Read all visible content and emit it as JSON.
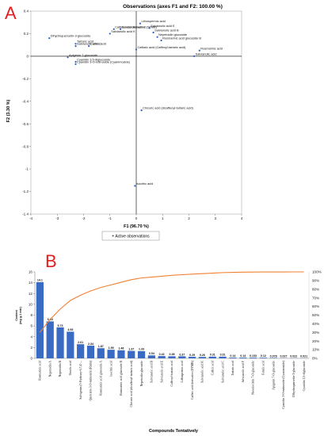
{
  "panel_a_letter": "A",
  "panel_b_letter": "B",
  "chart_data": [
    {
      "type": "scatter",
      "title": "Observations (axes F1 and F2: 100.00 %)",
      "xlabel": "F1 (96.70 %)",
      "ylabel": "F2 (3.30 %)",
      "xlim": [
        -4,
        4
      ],
      "ylim": [
        -1.4,
        0.4
      ],
      "xticks": [
        -4,
        -3,
        -2,
        -1,
        0,
        1,
        2,
        3,
        4
      ],
      "yticks": [
        0.4,
        0.2,
        0,
        -0.2,
        -0.4,
        -0.6,
        -0.8,
        -1,
        -1.2,
        -1.4
      ],
      "legend": "+ Active observations",
      "color": "#2f5fbf",
      "points": [
        {
          "label": "Dihydroquercetin-3-glucoside",
          "x": -3.3,
          "y": 0.16
        },
        {
          "label": "Salvianolic acid K",
          "x": -1.0,
          "y": 0.2
        },
        {
          "label": "Caffeic acid derivative (DTMB)",
          "x": -0.85,
          "y": 0.24
        },
        {
          "label": "Salvianolic acid 2",
          "x": -0.6,
          "y": 0.24
        },
        {
          "label": "Tartaric acid",
          "x": -2.3,
          "y": 0.11
        },
        {
          "label": "Salvianolic acid C",
          "x": -2.3,
          "y": 0.09
        },
        {
          "label": "Caffeic acid",
          "x": -1.8,
          "y": 0.09
        },
        {
          "label": "Apigenin 7-glucoside",
          "x": -2.6,
          "y": -0.01
        },
        {
          "label": "Cyanidin 3,5-diglucoside",
          "x": -2.3,
          "y": -0.05
        },
        {
          "label": "Cyanidin 3-O-rutinoside (Cyanimoside)",
          "x": -2.3,
          "y": -0.07
        },
        {
          "label": "Lithospermic acid",
          "x": 0.15,
          "y": 0.29
        },
        {
          "label": "Salvianolic acid E",
          "x": 0.5,
          "y": 0.25
        },
        {
          "label": "Salvianolic acid B",
          "x": 0.65,
          "y": 0.21
        },
        {
          "label": "Nepetoidin glucoside",
          "x": 0.8,
          "y": 0.17
        },
        {
          "label": "Rosmarinic acid glucoside B",
          "x": 0.95,
          "y": 0.14
        },
        {
          "label": "Caftaric acid (Caffeoyl-tartaric acid)",
          "x": 0.0,
          "y": 0.06
        },
        {
          "label": "Rosmarinic acid",
          "x": 2.4,
          "y": 0.05
        },
        {
          "label": "Salvianolic acid",
          "x": 2.2,
          "y": 0.0
        },
        {
          "label": "Chicoric acid (dicaffeoyl-tartaric acid)",
          "x": 0.2,
          "y": -0.48
        },
        {
          "label": "Isocitric acid",
          "x": -0.05,
          "y": -1.15
        }
      ]
    },
    {
      "type": "bar",
      "xlabel": "Compounds Tentatively",
      "ylabel": "Content (mg g-1 extr)",
      "ylim": [
        0,
        16
      ],
      "yticks": [
        0,
        2,
        4,
        6,
        8,
        10,
        12,
        14,
        16
      ],
      "y2lim": [
        0,
        100
      ],
      "y2ticks": [
        "0%",
        "10%",
        "20%",
        "30%",
        "40%",
        "50%",
        "60%",
        "70%",
        "80%",
        "90%",
        "100%"
      ],
      "bar_color": "#3a6bc4",
      "line_color": "#f08030",
      "categories": [
        "Rosmarinic acid",
        "Nepetoidin A",
        "Nepetoidin B",
        "Ursolic acid",
        "Salvigenin (5-Hydroxy-6,7,4'-...",
        "Quercetin-3-O-rutinoside (Rutin)",
        "Rosmarinic acid glucoside A",
        "Isocitric acid",
        "Rosmarinic acid glucoside B",
        "Chicoric acid (dicaffeoyl-tartaric acid)",
        "Nepetoidin glucoside",
        "Salvianolic acid B",
        "Salvianolic acid E",
        "Caffeoyl-tartaric acid",
        "Lithospermic acid",
        "Caffeic acid derivative (DTMB)",
        "Salvianolic acid K",
        "Caffeic acid",
        "Salvianolic acid C",
        "Tartaric acid",
        "Salvianolic acid F",
        "Neoeriocitrin 7-O-glucoside",
        "Ferulic acid",
        "Apigenin 7-O-glucoside",
        "Cyanidin 3-O-rutinoside (Cyanimoside)",
        "Dihydroquercetin-3-glucoside",
        "Cyanidin 3,5-diglucoside"
      ],
      "value_labels": [
        "14.1",
        "6.84",
        "5.73",
        "4.93",
        "2.61",
        "2.34",
        "1.87",
        "1.59",
        "1.48",
        "1.37",
        "1.33",
        "0.54",
        "0.42",
        "0.38",
        "0.37",
        "0.29",
        "0.26",
        "0.31",
        "0.31",
        "0.14",
        "0.14",
        "0.133",
        "0.12",
        "0.078",
        "0.027",
        "0.022",
        "0.021"
      ],
      "values": [
        14.1,
        6.84,
        5.73,
        4.93,
        2.61,
        2.34,
        1.87,
        1.59,
        1.48,
        1.37,
        1.33,
        0.54,
        0.42,
        0.38,
        0.37,
        0.29,
        0.26,
        0.31,
        0.31,
        0.14,
        0.14,
        0.133,
        0.12,
        0.078,
        0.027,
        0.022,
        0.021
      ],
      "cumulative_percent": [
        30,
        45,
        57,
        67,
        73,
        78,
        82,
        85,
        88,
        91,
        93,
        94,
        95,
        96,
        96.8,
        97.4,
        98,
        98.6,
        99.2,
        99.5,
        99.7,
        99.8,
        99.9,
        99.95,
        99.97,
        99.99,
        100
      ]
    }
  ]
}
